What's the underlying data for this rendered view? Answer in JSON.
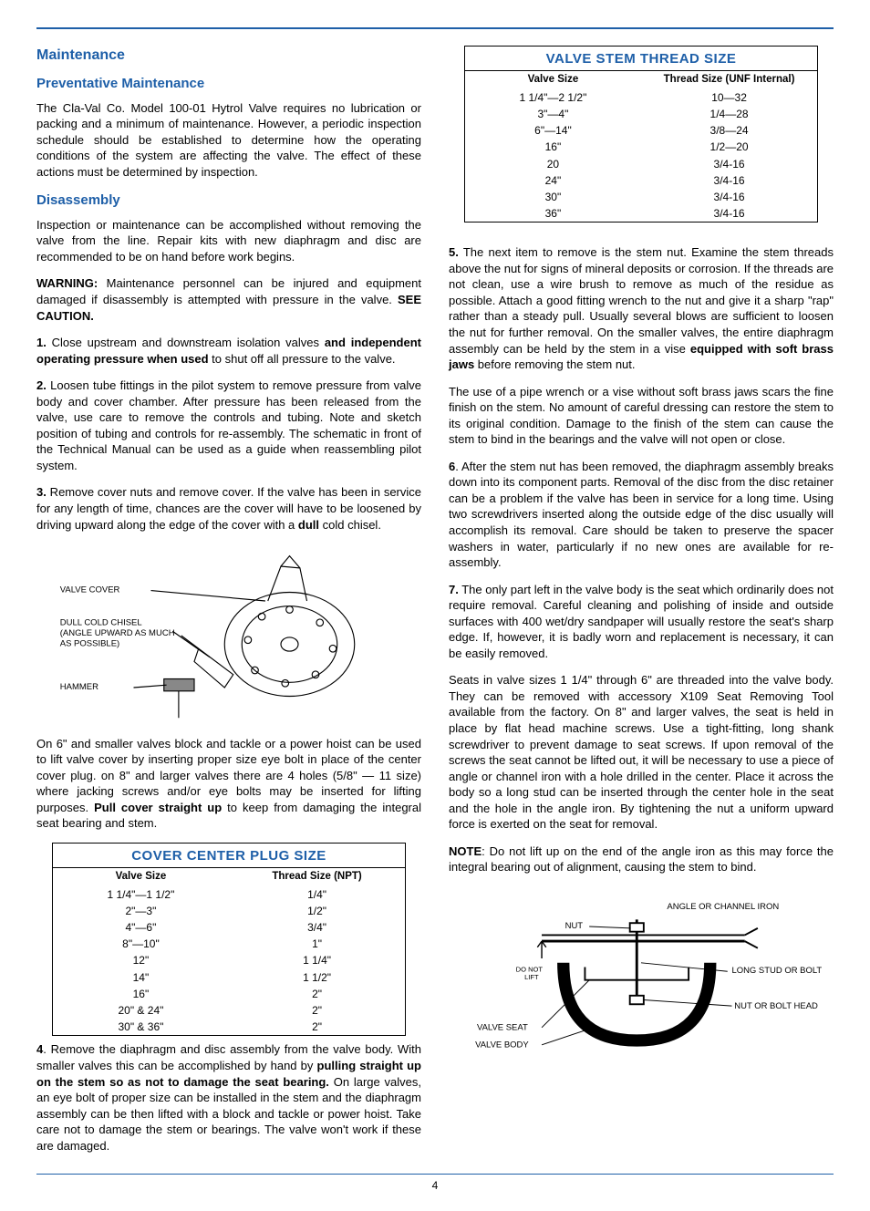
{
  "page_number": "4",
  "accent_color": "#1e5fa8",
  "left": {
    "heading_main": "Maintenance",
    "heading_preventative": "Preventative Maintenance",
    "para_preventative": "The Cla-Val Co. Model 100-01 Hytrol Valve requires no lubrication or packing and a minimum of maintenance. However, a periodic inspection schedule should be established to determine how the operating conditions of the system are affecting the valve. The effect of these actions must be determined by inspection.",
    "heading_disassembly": "Disassembly",
    "para_disassembly_intro": "Inspection or maintenance can be accomplished without removing the valve from the line.  Repair kits with new diaphragm and disc are recommended to be on hand before work begins.",
    "warning_label": "WARNING:",
    "warning_text": " Maintenance personnel can be injured and equipment damaged if disassembly is attempted with pressure in the valve. ",
    "warning_see": "SEE CAUTION.",
    "step1_num": "1.",
    "step1_a": " Close upstream and downstream isolation valves ",
    "step1_bold": "and independent operating pressure when used",
    "step1_b": " to shut off all pressure to the valve.",
    "step2_num": "2.",
    "step2": " Loosen tube fittings in the pilot system to remove pressure from valve body and cover chamber. After pressure has been released from the valve, use care to remove the controls and tubing. Note and sketch  position of tubing and controls for re-assembly. The schematic in front of the Technical Manual can be used as a guide when reassembling pilot system.",
    "step3_num": "3.",
    "step3_a": " Remove cover nuts and remove cover. If the valve has been in service for any length of time, chances are the cover will have to be loosened by driving upward along the edge of the cover with a ",
    "step3_bold": "dull",
    "step3_b": " cold chisel.",
    "diagram1_labels": {
      "valve_cover": "VALVE COVER",
      "dull_chisel": "DULL COLD CHISEL (ANGLE UPWARD AS MUCH AS POSSIBLE)",
      "hammer": "HAMMER"
    },
    "para_after_diagram_a": "On 6\" and smaller valves block and tackle or a power hoist can be used to lift valve cover by inserting proper size eye bolt in place of the center cover plug. on 8\" and larger valves there are 4 holes (5/8\" — 11 size) where jacking screws and/or eye bolts  may be inserted for lifting purposes. ",
    "para_after_diagram_bold": "Pull cover straight up",
    "para_after_diagram_b": " to keep from damaging the  integral seat bearing and stem.",
    "table1": {
      "title": "COVER CENTER PLUG SIZE",
      "col1": "Valve Size",
      "col2": "Thread Size (NPT)",
      "rows": [
        [
          "1 1/4\"—1 1/2\"",
          "1/4\""
        ],
        [
          "2\"—3\"",
          "1/2\""
        ],
        [
          "4\"—6\"",
          "3/4\""
        ],
        [
          "8\"—10\"",
          "1\""
        ],
        [
          "12\"",
          "1 1/4\""
        ],
        [
          "14\"",
          "1 1/2\""
        ],
        [
          "16\"",
          "2\""
        ],
        [
          "20\" & 24\"",
          "2\""
        ],
        [
          "30\" & 36\"",
          "2\""
        ]
      ]
    },
    "step4_num": "4",
    "step4_a": ". Remove the diaphragm and disc assembly from the valve body. With smaller valves this can be accomplished by hand by ",
    "step4_bold": "pulling straight up on the stem so as not to damage the seat bearing.",
    "step4_b": " On large valves, an eye bolt of proper size can be installed in the stem and the diaphragm assembly can be then lifted with a block and tackle or power hoist. Take care not to damage the stem or bearings. The valve won't work if these are damaged."
  },
  "right": {
    "table2": {
      "title": "VALVE STEM THREAD SIZE",
      "col1": "Valve Size",
      "col2": "Thread Size (UNF Internal)",
      "rows": [
        [
          "1 1/4\"—2 1/2\"",
          "10—32"
        ],
        [
          "3\"—4\"",
          "1/4—28"
        ],
        [
          "6\"—14\"",
          "3/8—24"
        ],
        [
          "16\"",
          "1/2—20"
        ],
        [
          "20",
          "3/4-16"
        ],
        [
          "24\"",
          "3/4-16"
        ],
        [
          "30\"",
          "3/4-16"
        ],
        [
          "36\"",
          "3/4-16"
        ]
      ]
    },
    "step5_num": "5.",
    "step5_a": " The next item to remove is the stem nut. Examine the stem threads above the nut for signs of mineral deposits or corrosion. If the threads are not clean, use a wire brush to remove as much of the residue as possible. Attach a good fitting wrench to the nut and give it a sharp \"rap\" rather than a steady pull. Usually several blows are sufficient to loosen the nut for further removal. On the smaller valves, the entire diaphragm assembly can be held by the stem in a vise ",
    "step5_bold": "equipped with soft brass jaws",
    "step5_b": " before removing the stem nut.",
    "para_pipe_wrench": "The use of a pipe wrench or a vise without soft brass jaws scars the fine finish on the stem. No amount of careful dressing can restore the stem to its original condition. Damage to the finish of the stem can cause the stem to bind in the bearings and the valve will not open or close.",
    "step6_num": "6",
    "step6": ". After the stem nut has been removed, the diaphragm assembly breaks down into its component parts. Removal of the disc from the disc retainer can be a problem if the valve has been in service for a long time. Using two screwdrivers inserted along the outside edge of the disc usually will accomplish its removal. Care should be taken to preserve the spacer washers in water, particularly if no new ones are available for re-assembly.",
    "step7_num": "7.",
    "step7": " The only part left in the valve body is the seat which ordinarily does not require removal. Careful cleaning and polishing of inside and outside surfaces with 400 wet/dry sandpaper will usually restore the seat's sharp edge. If, however, it is badly worn and replacement is necessary, it can be easily removed.",
    "para_seats": "Seats in valve sizes 1 1/4\" through 6\" are threaded into the valve body.  They can be removed with accessory X109 Seat Removing Tool available from the factory. On 8\" and larger valves, the seat is held in place by flat head machine screws.  Use a tight-fitting, long shank screwdriver to prevent damage to seat screws. If upon removal of the screws the seat cannot be lifted out, it will be necessary to use a piece of angle or channel iron with a hole drilled in the center. Place it across the body so a long stud can be inserted through the  center hole in the seat and the hole in the angle iron. By tightening the nut a uniform upward force is exerted on the seat for removal.",
    "note_label": "NOTE",
    "note_text": ": Do not lift up on the end of the angle iron as this may force the integral bearing out of alignment, causing the stem to bind.",
    "diagram2_labels": {
      "angle_iron": "ANGLE OR CHANNEL IRON",
      "nut": "NUT",
      "do_not_lift": "DO NOT LIFT",
      "long_stud": "LONG STUD OR BOLT",
      "nut_bolt_head": "NUT OR BOLT HEAD",
      "valve_seat": "VALVE SEAT",
      "valve_body": "VALVE BODY"
    }
  }
}
